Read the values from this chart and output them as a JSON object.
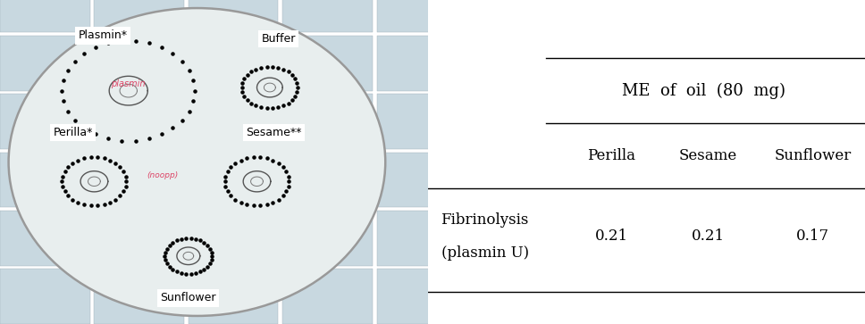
{
  "table_header_top": "ME  of  oil  (80  mg)",
  "col_labels": [
    "Perilla",
    "Sesame",
    "Sunflower"
  ],
  "row_label_line1": "Fibrinolysis",
  "row_label_line2": "(plasmin U)",
  "values": [
    "0.21",
    "0.21",
    "0.17"
  ],
  "bg_color": "#ffffff",
  "text_color": "#000000",
  "line_color": "#000000",
  "font_size_header": 13,
  "font_size_col": 12,
  "font_size_val": 12,
  "font_size_row_label": 12,
  "image_bg": "#b8c8d0",
  "dish_color": "#dde8ec",
  "dish_border": "#aaaaaa",
  "tile_bg": "#c8d8e0",
  "label_positions": {
    "plasmin": [
      0.3,
      0.75,
      0.24,
      0.9
    ],
    "buffer": [
      0.62,
      0.75,
      0.64,
      0.88
    ],
    "perilla": [
      0.22,
      0.45,
      0.16,
      0.6
    ],
    "sesame": [
      0.6,
      0.45,
      0.63,
      0.6
    ],
    "sunflower": [
      0.44,
      0.22,
      0.44,
      0.08
    ]
  }
}
